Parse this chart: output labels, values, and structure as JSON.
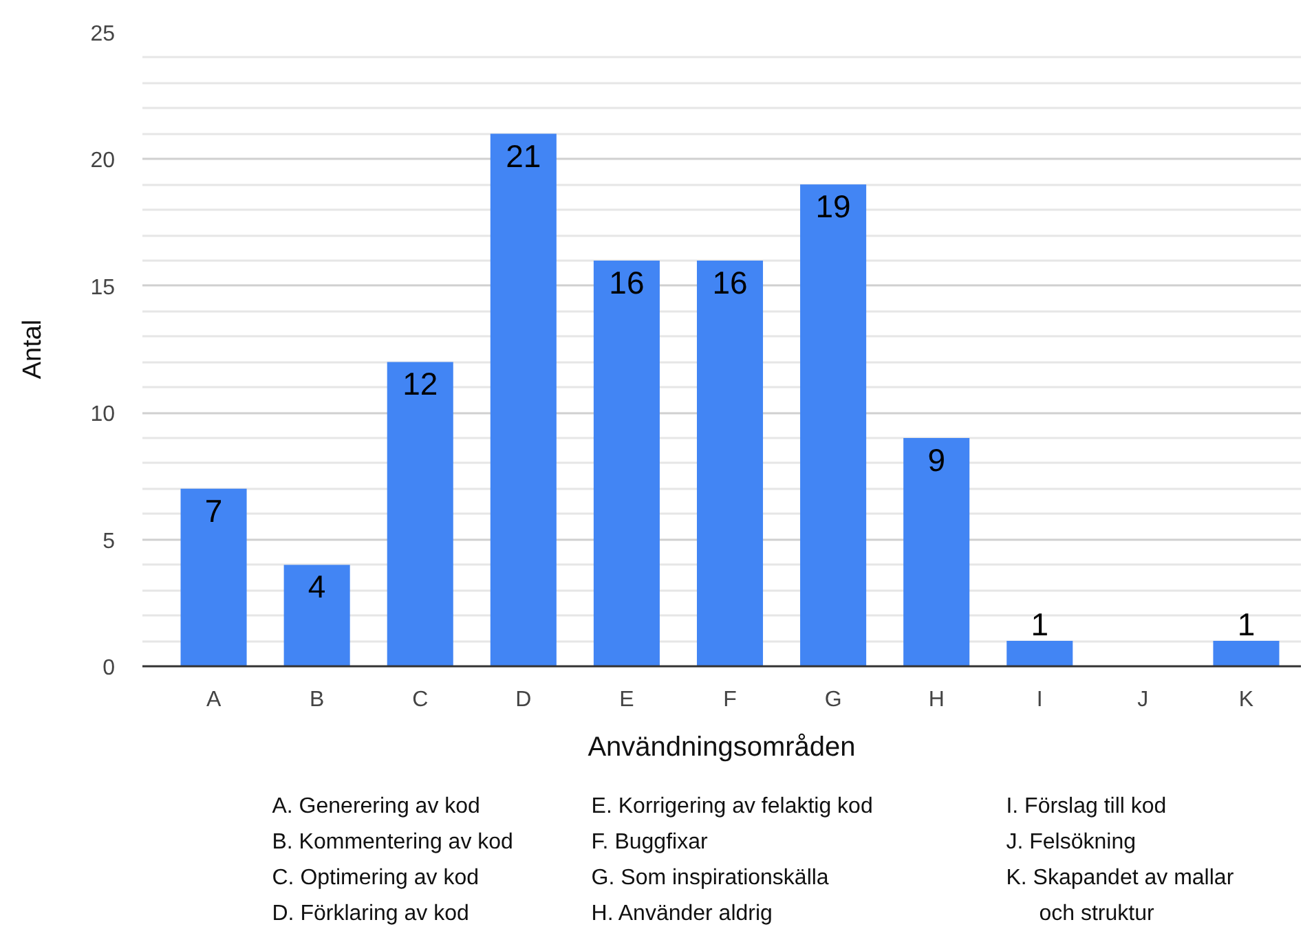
{
  "chart_data": {
    "type": "bar",
    "xlabel": "Användningsområden",
    "ylabel": "Antal",
    "categories": [
      "A",
      "B",
      "C",
      "D",
      "E",
      "F",
      "G",
      "H",
      "I",
      "J",
      "K"
    ],
    "values": [
      7,
      4,
      12,
      21,
      16,
      16,
      19,
      9,
      1,
      0,
      1
    ],
    "color": "#4285f4",
    "value_labels": [
      "7",
      "4",
      "12",
      "21",
      "16",
      "16",
      "19",
      "9",
      "1",
      null,
      "1"
    ],
    "ylim": [
      0,
      25
    ],
    "yticks": [
      0,
      {
        "value": 1,
        "label": null
      },
      {
        "value": 2,
        "label": null
      },
      {
        "value": 3,
        "label": null
      },
      {
        "value": 4,
        "label": null
      },
      5,
      {
        "value": 6,
        "label": null
      },
      {
        "value": 7,
        "label": null
      },
      {
        "value": 8,
        "label": null
      },
      {
        "value": 9,
        "label": null
      },
      10,
      {
        "value": 11,
        "label": null
      },
      {
        "value": 12,
        "label": null
      },
      {
        "value": 13,
        "label": null
      },
      {
        "value": 14,
        "label": null
      },
      15,
      {
        "value": 16,
        "label": null
      },
      {
        "value": 17,
        "label": null
      },
      {
        "value": 18,
        "label": null
      },
      {
        "value": 19,
        "label": null
      },
      20,
      {
        "value": 21,
        "label": null
      },
      {
        "value": 22,
        "label": null
      },
      {
        "value": 23,
        "label": null
      },
      {
        "value": 24,
        "label": null
      },
      25
    ],
    "grid": "y",
    "annotations": [
      "A. Generering av kod",
      "B. Kommentering av kod",
      "C. Optimering av kod",
      "D. Förklaring av kod",
      "E. Korrigering av felaktig kod",
      "F. Buggfixar",
      "G. Som inspirationskälla",
      "H. Använder aldrig",
      "I. Förslag till kod",
      "J. Felsökning",
      "K. Skapandet av mallar och struktur"
    ]
  }
}
